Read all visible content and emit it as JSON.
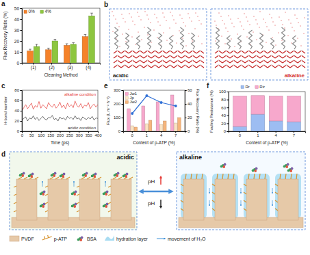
{
  "chart_data": [
    {
      "panel": "a",
      "type": "bar",
      "x_label": "Cleaning Method",
      "y_label": "Flux Recovery Ratio (%)",
      "categories": [
        "(1)",
        "(2)",
        "(3)",
        "(4)"
      ],
      "series": [
        {
          "name": "0%",
          "color": "#f5822a",
          "values": [
            11,
            12,
            16,
            24
          ],
          "errors": [
            1.5,
            1.5,
            1.5,
            2
          ]
        },
        {
          "name": "4%",
          "color": "#8dc63f",
          "values": [
            15,
            20,
            17,
            43
          ],
          "errors": [
            2,
            1.5,
            1.5,
            2.5
          ]
        }
      ],
      "ylim": [
        0,
        50
      ],
      "yticks": [
        0,
        10,
        20,
        30,
        40,
        50
      ],
      "legend": "top-left"
    },
    {
      "panel": "c",
      "type": "line",
      "x_label": "Time (ps)",
      "y_label": "H-bond number",
      "x": [
        0,
        10,
        20,
        30,
        40,
        50,
        60,
        70,
        80,
        90,
        100,
        110,
        120,
        130,
        140,
        150,
        160,
        170,
        180,
        190,
        200,
        210,
        220,
        230,
        240,
        250,
        260,
        270,
        280,
        290,
        300,
        310,
        320,
        330,
        340,
        350,
        360,
        370,
        380,
        390,
        400
      ],
      "series": [
        {
          "name": "alkaline condition",
          "color": "#e53935",
          "values": [
            40,
            46,
            52,
            44,
            49,
            55,
            43,
            50,
            47,
            58,
            45,
            52,
            48,
            44,
            56,
            50,
            47,
            53,
            45,
            49,
            57,
            46,
            51,
            44,
            55,
            48,
            52,
            46,
            59,
            50,
            47,
            54,
            45,
            51,
            49,
            56,
            44,
            50,
            53,
            47,
            52
          ]
        },
        {
          "name": "acidic condition",
          "color": "#333333",
          "values": [
            22,
            25,
            28,
            20,
            26,
            24,
            30,
            23,
            27,
            21,
            25,
            29,
            24,
            22,
            27,
            26,
            31,
            23,
            25,
            20,
            28,
            24,
            26,
            22,
            29,
            25,
            27,
            23,
            30,
            24,
            26,
            21,
            28,
            25,
            23,
            27,
            24,
            29,
            22,
            26,
            25
          ]
        }
      ],
      "xlim": [
        0,
        400
      ],
      "xticks": [
        0,
        50,
        100,
        150,
        200,
        250,
        300,
        350,
        400
      ],
      "ylim": [
        0,
        80
      ],
      "yticks": [
        0,
        20,
        40,
        60,
        80
      ]
    },
    {
      "panel": "e",
      "type": "bar",
      "x_label": "Content of p-ATP (%)",
      "y_label": "Flux (L m⁻² h⁻¹)",
      "y2_label": "Flux Recovery Ratio (%)",
      "categories": [
        "0",
        "1",
        "4",
        "7"
      ],
      "series": [
        {
          "name": "Jw1",
          "color": "#f7a8cc",
          "values": [
            165,
            185,
            215,
            265
          ]
        },
        {
          "name": "Jp",
          "color": "#fbe3c4",
          "values": [
            40,
            55,
            50,
            60
          ]
        },
        {
          "name": "Jw2",
          "color": "#f6b57c",
          "values": [
            30,
            80,
            75,
            100
          ]
        },
        {
          "type": "line",
          "axis": "y2",
          "color": "#2f6fd6",
          "marker": "circle",
          "values": [
            26,
            52,
            42,
            37
          ]
        }
      ],
      "ylim": [
        0,
        300
      ],
      "yticks": [
        0,
        100,
        200,
        300
      ],
      "y2lim": [
        0,
        60
      ],
      "y2ticks": [
        0,
        20,
        40,
        60
      ],
      "legend": "top-left"
    },
    {
      "panel": "f",
      "type": "bar",
      "stacked": true,
      "x_label": "Content of p-ATP (%)",
      "y_label": "Fouling Resistance (%)",
      "categories": [
        "0",
        "1",
        "4",
        "7"
      ],
      "series": [
        {
          "name": "Rr",
          "color": "#9dbdf2",
          "values": [
            12,
            43,
            26,
            24
          ]
        },
        {
          "name": "Rir",
          "color": "#f7a8cc",
          "values": [
            77,
            47,
            63,
            65
          ]
        }
      ],
      "ylim": [
        0,
        100
      ],
      "yticks": [
        0,
        20,
        40,
        60,
        80,
        100
      ],
      "legend": "top"
    }
  ],
  "diagrams": [
    {
      "panel": "b",
      "labels": [
        "acidic",
        "alkaline"
      ]
    },
    {
      "panel": "d",
      "labels": [
        "acidic",
        "alkaline"
      ],
      "arrows": [
        "pH",
        "pH"
      ],
      "key_items": [
        "PVDF",
        "p-ATP",
        "BSA",
        "hydration layer",
        "movement of H₂O"
      ]
    }
  ]
}
